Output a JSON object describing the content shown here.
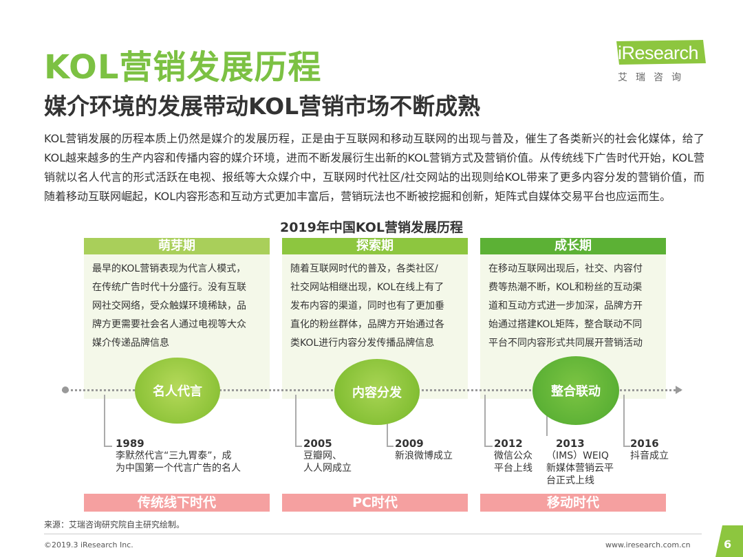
{
  "header": {
    "title": "KOL营销发展历程",
    "subtitle": "媒介环境的发展带动KOL营销市场不断成熟"
  },
  "logo": {
    "name": "iResearch",
    "sub": "艾瑞咨询"
  },
  "intro": "KOL营销发展的历程本质上仍然是媒介的发展历程，正是由于互联网和移动互联网的出现与普及，催生了各类新兴的社会化媒体，给了KOL越来越多的生产内容和传播内容的媒介环境，进而不断发展衍生出新的KOL营销方式及营销价值。从传统线下广告时代开始，KOL营销就以名人代言的形式活跃在电视、报纸等大众媒介中，互联网时代社区/社交网站的出现则给KOL带来了更多内容分发的营销价值，而随着移动互联网崛起，KOL内容形态和互动方式更加丰富后，营销玩法也不断被挖掘和创新，矩阵式自媒体交易平台也应运而生。",
  "chart_title": "2019年中国KOL营销发展历程",
  "phases": [
    {
      "name": "萌芽期",
      "desc": [
        "最早的KOL营销表现为代言人模式，",
        "在传统广告时代十分盛行。没有互联",
        "网社交网络，受众触媒环境稀缺，品",
        "牌方更需要社会名人通过电视等大众",
        "媒介传递品牌信息"
      ],
      "bubble": "名人代言",
      "era": "传统线下时代"
    },
    {
      "name": "探索期",
      "desc": [
        "随着互联网时代的普及，各类社区/",
        "社交网站相继出现，KOL在线上有了",
        "发布内容的渠道，同时也有了更加垂",
        "直化的粉丝群体，品牌方开始通过各",
        "类KOL进行内容分发传播品牌信息"
      ],
      "bubble": "内容分发",
      "era": "PC时代"
    },
    {
      "name": "成长期",
      "desc": [
        "在移动互联网出现后，社交、内容付",
        "费等热潮不断，KOL和粉丝的互动渠",
        "道和互动方式进一步加深，品牌方开",
        "始通过搭建KOL矩阵，整合联动不同",
        "平台不同内容形式共同展开营销活动"
      ],
      "bubble": "整合联动",
      "era": "移动时代"
    }
  ],
  "events": [
    {
      "year": "1989",
      "lines": [
        "李默然代言“三九胃泰”，成",
        "为中国第一个代言广告的名人"
      ]
    },
    {
      "year": "2005",
      "lines": [
        "豆瓣网、",
        "人人网成立"
      ]
    },
    {
      "year": "2009",
      "lines": [
        "新浪微博成立"
      ]
    },
    {
      "year": "2012",
      "lines": [
        "微信公众",
        "平台上线"
      ]
    },
    {
      "year": "2013",
      "lines": [
        "（IMS）WEIQ",
        "新媒体营销云平",
        "台正式上线"
      ]
    },
    {
      "year": "2016",
      "lines": [
        "抖音成立"
      ]
    }
  ],
  "colors": {
    "title_green": "#7cc143",
    "phase1": "#a9cf5a",
    "phase2": "#8dc63f",
    "phase3": "#5cb135",
    "box_bg": "#f4f8e9",
    "era_pink": "#f5a0a0"
  },
  "footer": {
    "source": "来源：艾瑞咨询研究院自主研究绘制。",
    "copyright": "©2019.3 iResearch Inc.",
    "website": "www.iresearch.com.cn",
    "page": "6"
  }
}
